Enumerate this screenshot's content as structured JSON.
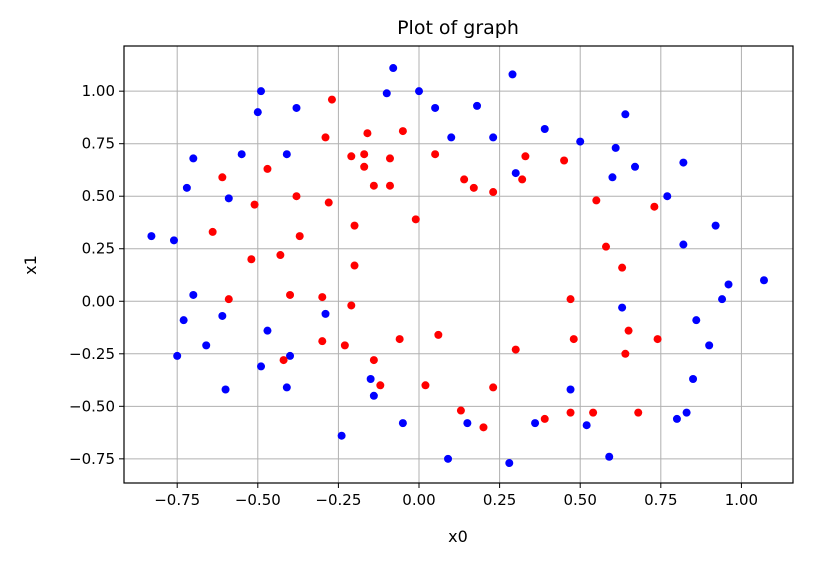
{
  "chart_data": {
    "type": "scatter",
    "title": "Plot of graph",
    "xlabel": "x0",
    "ylabel": "x1",
    "xlim": [
      -0.915,
      1.16
    ],
    "ylim": [
      -0.865,
      1.215
    ],
    "grid": true,
    "x_ticks": [
      -0.75,
      -0.5,
      -0.25,
      0.0,
      0.25,
      0.5,
      0.75,
      1.0
    ],
    "x_tick_labels": [
      "−0.75",
      "−0.50",
      "−0.25",
      "0.00",
      "0.25",
      "0.50",
      "0.75",
      "1.00"
    ],
    "y_ticks": [
      -0.75,
      -0.5,
      -0.25,
      0.0,
      0.25,
      0.5,
      0.75,
      1.0
    ],
    "y_tick_labels": [
      "−0.75",
      "−0.50",
      "−0.25",
      "0.00",
      "0.25",
      "0.50",
      "0.75",
      "1.00"
    ],
    "series": [
      {
        "color": "#0000ff",
        "points": [
          [
            -0.83,
            0.31
          ],
          [
            -0.76,
            0.29
          ],
          [
            -0.75,
            -0.26
          ],
          [
            -0.73,
            -0.09
          ],
          [
            -0.72,
            0.54
          ],
          [
            -0.7,
            0.68
          ],
          [
            -0.7,
            0.03
          ],
          [
            -0.66,
            -0.21
          ],
          [
            -0.61,
            -0.07
          ],
          [
            -0.6,
            -0.42
          ],
          [
            -0.59,
            0.49
          ],
          [
            -0.55,
            0.7
          ],
          [
            -0.5,
            0.9
          ],
          [
            -0.49,
            1.0
          ],
          [
            -0.49,
            -0.31
          ],
          [
            -0.47,
            -0.14
          ],
          [
            -0.41,
            0.7
          ],
          [
            -0.41,
            -0.41
          ],
          [
            -0.4,
            -0.26
          ],
          [
            -0.38,
            0.92
          ],
          [
            -0.29,
            -0.06
          ],
          [
            -0.24,
            -0.64
          ],
          [
            -0.15,
            -0.37
          ],
          [
            -0.14,
            -0.45
          ],
          [
            -0.1,
            0.99
          ],
          [
            -0.08,
            1.11
          ],
          [
            -0.05,
            -0.58
          ],
          [
            0.0,
            1.0
          ],
          [
            0.05,
            0.92
          ],
          [
            0.09,
            -0.75
          ],
          [
            0.1,
            0.78
          ],
          [
            0.15,
            -0.58
          ],
          [
            0.18,
            0.93
          ],
          [
            0.23,
            0.78
          ],
          [
            0.28,
            -0.77
          ],
          [
            0.29,
            1.08
          ],
          [
            0.3,
            0.61
          ],
          [
            0.36,
            -0.58
          ],
          [
            0.39,
            0.82
          ],
          [
            0.47,
            -0.42
          ],
          [
            0.5,
            0.76
          ],
          [
            0.52,
            -0.59
          ],
          [
            0.59,
            -0.74
          ],
          [
            0.6,
            0.59
          ],
          [
            0.61,
            0.73
          ],
          [
            0.63,
            -0.03
          ],
          [
            0.64,
            0.89
          ],
          [
            0.67,
            0.64
          ],
          [
            0.77,
            0.5
          ],
          [
            0.8,
            -0.56
          ],
          [
            0.82,
            0.66
          ],
          [
            0.82,
            0.27
          ],
          [
            0.83,
            -0.53
          ],
          [
            0.85,
            -0.37
          ],
          [
            0.86,
            -0.09
          ],
          [
            0.9,
            -0.21
          ],
          [
            0.92,
            0.36
          ],
          [
            0.94,
            0.01
          ],
          [
            0.96,
            0.08
          ],
          [
            1.07,
            0.1
          ]
        ]
      },
      {
        "color": "#ff0000",
        "points": [
          [
            -0.64,
            0.33
          ],
          [
            -0.61,
            0.59
          ],
          [
            -0.59,
            0.01
          ],
          [
            -0.52,
            0.2
          ],
          [
            -0.51,
            0.46
          ],
          [
            -0.47,
            0.63
          ],
          [
            -0.43,
            0.22
          ],
          [
            -0.42,
            -0.28
          ],
          [
            -0.4,
            0.03
          ],
          [
            -0.38,
            0.5
          ],
          [
            -0.37,
            0.31
          ],
          [
            -0.3,
            0.02
          ],
          [
            -0.3,
            -0.19
          ],
          [
            -0.29,
            0.78
          ],
          [
            -0.28,
            0.47
          ],
          [
            -0.27,
            0.96
          ],
          [
            -0.23,
            -0.21
          ],
          [
            -0.21,
            -0.02
          ],
          [
            -0.21,
            0.69
          ],
          [
            -0.2,
            0.36
          ],
          [
            -0.2,
            0.17
          ],
          [
            -0.17,
            0.7
          ],
          [
            -0.17,
            0.64
          ],
          [
            -0.16,
            0.8
          ],
          [
            -0.14,
            0.55
          ],
          [
            -0.14,
            -0.28
          ],
          [
            -0.12,
            -0.4
          ],
          [
            -0.09,
            0.68
          ],
          [
            -0.09,
            0.55
          ],
          [
            -0.06,
            -0.18
          ],
          [
            -0.05,
            0.81
          ],
          [
            -0.01,
            0.39
          ],
          [
            0.02,
            -0.4
          ],
          [
            0.05,
            0.7
          ],
          [
            0.06,
            -0.16
          ],
          [
            0.13,
            -0.52
          ],
          [
            0.14,
            0.58
          ],
          [
            0.17,
            0.54
          ],
          [
            0.2,
            -0.6
          ],
          [
            0.23,
            0.52
          ],
          [
            0.23,
            -0.41
          ],
          [
            0.3,
            -0.23
          ],
          [
            0.32,
            0.58
          ],
          [
            0.33,
            0.69
          ],
          [
            0.39,
            -0.56
          ],
          [
            0.45,
            0.67
          ],
          [
            0.47,
            0.01
          ],
          [
            0.47,
            -0.53
          ],
          [
            0.48,
            -0.18
          ],
          [
            0.54,
            -0.53
          ],
          [
            0.55,
            0.48
          ],
          [
            0.58,
            0.26
          ],
          [
            0.63,
            0.16
          ],
          [
            0.64,
            -0.25
          ],
          [
            0.65,
            -0.14
          ],
          [
            0.68,
            -0.53
          ],
          [
            0.73,
            0.45
          ],
          [
            0.74,
            -0.18
          ]
        ]
      }
    ]
  }
}
